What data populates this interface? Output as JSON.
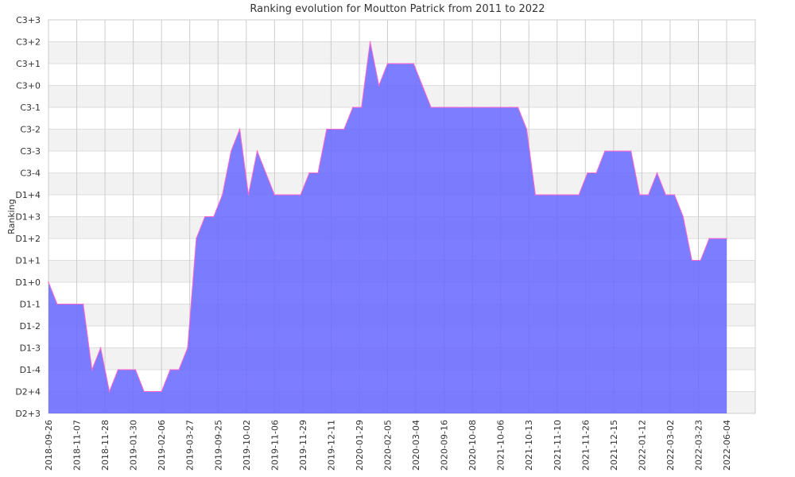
{
  "chart_data": {
    "type": "area",
    "title": "Ranking evolution for Moutton Patrick from 2011 to 2022",
    "ylabel": "Ranking",
    "xlabel": "",
    "y_ticks": [
      "D2+3",
      "D2+4",
      "D1-4",
      "D1-3",
      "D1-2",
      "D1-1",
      "D1+0",
      "D1+1",
      "D1+2",
      "D1+3",
      "D1+4",
      "C3-4",
      "C3-3",
      "C3-2",
      "C3-1",
      "C3+0",
      "C3+1",
      "C3+2",
      "C3+3"
    ],
    "x_ticks": [
      "2018-09-26",
      "2018-11-07",
      "2018-11-28",
      "2019-01-30",
      "2019-02-06",
      "2019-03-27",
      "2019-09-25",
      "2019-10-02",
      "2019-11-06",
      "2019-11-29",
      "2019-12-11",
      "2020-01-29",
      "2020-02-05",
      "2020-03-04",
      "2020-09-16",
      "2020-10-08",
      "2021-10-06",
      "2021-10-13",
      "2021-11-10",
      "2021-11-26",
      "2021-12-15",
      "2022-01-12",
      "2022-03-02",
      "2022-03-23",
      "2022-06-04"
    ],
    "values": [
      6,
      5,
      5,
      5,
      5,
      2,
      3,
      1,
      2,
      2,
      2,
      1,
      1,
      1,
      2,
      2,
      3,
      8,
      9,
      9,
      10,
      12,
      13,
      10,
      12,
      11,
      10,
      10,
      10,
      10,
      11,
      11,
      13,
      13,
      13,
      14,
      14,
      17,
      15,
      16,
      16,
      16,
      16,
      15,
      14,
      14,
      14,
      14,
      14,
      14,
      14,
      14,
      14,
      14,
      14,
      13,
      10,
      10,
      10,
      10,
      10,
      10,
      11,
      11,
      12,
      12,
      12,
      12,
      10,
      10,
      11,
      10,
      10,
      9,
      7,
      7,
      8,
      8,
      8
    ],
    "grid": true,
    "colors": {
      "fill": "#6666ff",
      "line": "#ff66cc",
      "band": "#f2f2f2",
      "grid": "#cccccc"
    }
  }
}
